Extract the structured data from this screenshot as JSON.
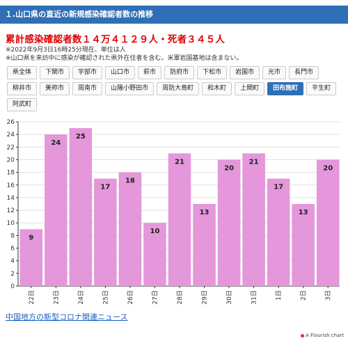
{
  "header": {
    "title": "１.山口県の直近の新規感染確認者数の推移"
  },
  "summary": {
    "headline": "累計感染確認者数１４万４１２９人・死者３４５人",
    "note1": "※2022年9月3日16時25分現在、単位は人",
    "note2": "※山口県を来訪中に感染が確認された県外在住者を含む。米軍岩国基地は含まない。"
  },
  "region_buttons": {
    "rows": [
      [
        "県全体",
        "下関市",
        "宇部市",
        "山口市",
        "萩市",
        "防府市",
        "下松市",
        "岩国市",
        "光市",
        "長門市"
      ],
      [
        "柳井市",
        "美祢市",
        "周南市",
        "山陽小野田市",
        "周防大島町",
        "和木町",
        "上関町",
        "田布施町",
        "平生町"
      ],
      [
        "阿武町"
      ]
    ],
    "active": "田布施町"
  },
  "chart_data": {
    "type": "bar",
    "categories": [
      "22日",
      "23日",
      "24日",
      "25日",
      "26日",
      "27日",
      "28日",
      "29日",
      "30日",
      "31日",
      "1日",
      "2日",
      "3日"
    ],
    "values": [
      9,
      24,
      25,
      17,
      18,
      10,
      21,
      13,
      20,
      21,
      17,
      13,
      20
    ],
    "title": "",
    "xlabel": "",
    "ylabel": "",
    "ylim": [
      0,
      26
    ],
    "yticks": [
      0,
      2,
      4,
      6,
      8,
      10,
      12,
      14,
      16,
      18,
      20,
      22,
      24,
      26
    ],
    "grid": true,
    "bar_color": "#e497da"
  },
  "footer": {
    "link_text": "中国地方の新型コロナ関連ニュース",
    "credit": "A Flourish chart"
  }
}
